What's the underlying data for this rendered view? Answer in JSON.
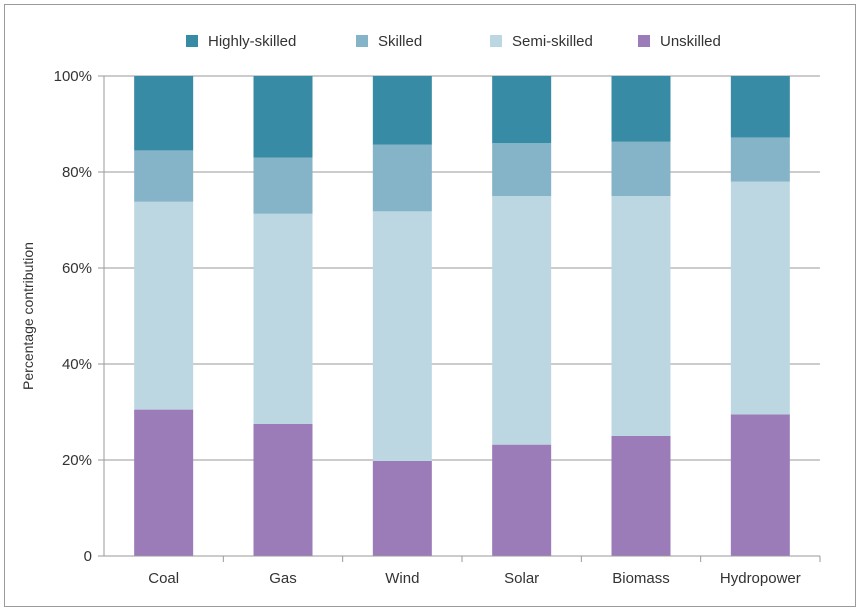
{
  "chart_data": {
    "type": "bar",
    "stacked": true,
    "categories": [
      "Coal",
      "Gas",
      "Wind",
      "Solar",
      "Biomass",
      "Hydropower"
    ],
    "series": [
      {
        "name": "Unskilled",
        "color": "#9b7bb8",
        "values": [
          30.5,
          27.5,
          19.8,
          23.2,
          25.0,
          29.5
        ]
      },
      {
        "name": "Semi-skilled",
        "color": "#bcd7e1",
        "values": [
          43.3,
          43.8,
          52.0,
          51.8,
          50.0,
          48.5
        ]
      },
      {
        "name": "Skilled",
        "color": "#85b3c8",
        "values": [
          10.7,
          11.7,
          13.9,
          11.0,
          11.3,
          9.2
        ]
      },
      {
        "name": "Highly-skilled",
        "color": "#388ba4",
        "values": [
          15.5,
          17.0,
          14.3,
          14.0,
          13.7,
          12.8
        ]
      }
    ],
    "legend_order": [
      "Highly-skilled",
      "Skilled",
      "Semi-skilled",
      "Unskilled"
    ],
    "legend_position": "top",
    "ylabel": "Percentage contribution",
    "ylim": [
      0,
      100
    ],
    "yticks": [
      0,
      20,
      40,
      60,
      80,
      100
    ],
    "ytick_labels": [
      "0",
      "20%",
      "40%",
      "60%",
      "80%",
      "100%"
    ],
    "grid": "horizontal"
  }
}
